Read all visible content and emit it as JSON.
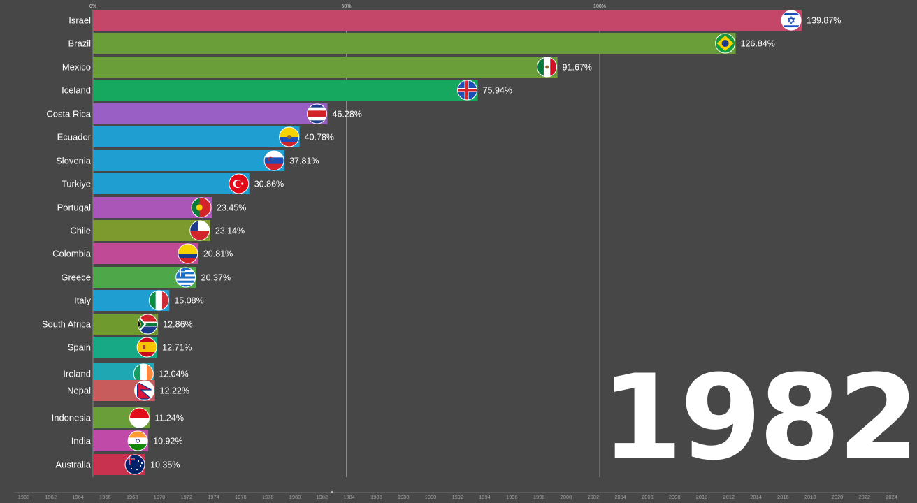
{
  "chart_data": {
    "type": "bar",
    "orientation": "horizontal",
    "year": "1982",
    "x_axis": {
      "ticks": [
        "0%",
        "50%",
        "100%"
      ],
      "tick_values": [
        0,
        50,
        100
      ],
      "grid": true
    },
    "categories": [
      "Israel",
      "Brazil",
      "Mexico",
      "Iceland",
      "Costa Rica",
      "Ecuador",
      "Slovenia",
      "Turkiye",
      "Portugal",
      "Chile",
      "Colombia",
      "Greece",
      "Italy",
      "South Africa",
      "Spain",
      "Ireland",
      "Nepal",
      "Indonesia",
      "India",
      "Australia"
    ],
    "values": [
      139.87,
      126.84,
      91.67,
      75.94,
      46.28,
      40.78,
      37.81,
      30.86,
      23.45,
      23.14,
      20.81,
      20.37,
      15.08,
      12.86,
      12.71,
      12.04,
      12.22,
      11.24,
      10.92,
      10.35
    ],
    "value_labels": [
      "139.87%",
      "126.84%",
      "91.67%",
      "75.94%",
      "46.28%",
      "40.78%",
      "37.81%",
      "30.86%",
      "23.45%",
      "23.14%",
      "20.81%",
      "20.37%",
      "15.08%",
      "12.86%",
      "12.71%",
      "12.04%",
      "12.22%",
      "11.24%",
      "10.92%",
      "10.35%"
    ],
    "colors": [
      "#c4476a",
      "#6a9e38",
      "#6a9e38",
      "#17a85f",
      "#9a5fc4",
      "#1f9ed2",
      "#1f9ed2",
      "#1f9ed2",
      "#a956b8",
      "#7c9a2e",
      "#c04a96",
      "#4ea84a",
      "#1f9ed2",
      "#6f9a2e",
      "#17a886",
      "#1fa8b4",
      "#c85c5c",
      "#6a9e38",
      "#c04aa8",
      "#c8324e"
    ],
    "flags": [
      "flag-israel-icon",
      "flag-brazil-icon",
      "flag-mexico-icon",
      "flag-iceland-icon",
      "flag-costa-rica-icon",
      "flag-ecuador-icon",
      "flag-slovenia-icon",
      "flag-turkiye-icon",
      "flag-portugal-icon",
      "flag-chile-icon",
      "flag-colombia-icon",
      "flag-greece-icon",
      "flag-italy-icon",
      "flag-south-africa-icon",
      "flag-spain-icon",
      "flag-ireland-icon",
      "flag-nepal-icon",
      "flag-indonesia-icon",
      "flag-india-icon",
      "flag-australia-icon"
    ],
    "timeline": [
      "1960",
      "1962",
      "1964",
      "1966",
      "1968",
      "1970",
      "1972",
      "1974",
      "1976",
      "1978",
      "1980",
      "1982",
      "1984",
      "1986",
      "1988",
      "1990",
      "1992",
      "1994",
      "1996",
      "1998",
      "2000",
      "2002",
      "2004",
      "2006",
      "2008",
      "2010",
      "2012",
      "2014",
      "2016",
      "2018",
      "2020",
      "2022",
      "2024"
    ],
    "background": "#474747"
  }
}
